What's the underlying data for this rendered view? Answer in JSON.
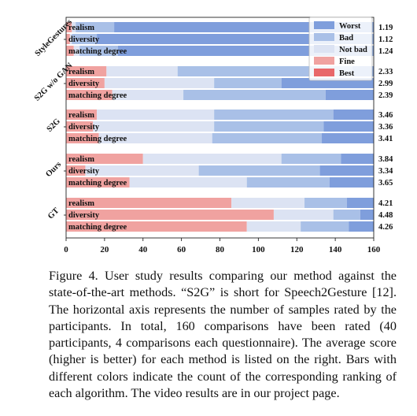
{
  "chart_data": {
    "type": "bar",
    "orientation": "horizontal",
    "stacked": true,
    "xlim": [
      0,
      160
    ],
    "xticks": [
      0,
      20,
      40,
      60,
      80,
      100,
      120,
      140,
      160
    ],
    "legend_position": "top-right",
    "legend_order": [
      "Worst",
      "Bad",
      "Not bad",
      "Fine",
      "Best"
    ],
    "rankings": [
      "Best",
      "Fine",
      "Not bad",
      "Bad",
      "Worst"
    ],
    "colors": {
      "Best": "#e8676a",
      "Fine": "#f0a2a0",
      "Not bad": "#dce3f3",
      "Bad": "#a9c0e7",
      "Worst": "#7f9edc"
    },
    "groups": [
      {
        "name": "StyleGestures",
        "bars": [
          {
            "label": "realism",
            "score": "1.19",
            "values": [
              0,
              3,
              2,
              20,
              135
            ]
          },
          {
            "label": "diversity",
            "score": "1.12",
            "values": [
              0,
              2,
              1,
              13,
              144
            ]
          },
          {
            "label": "matching degree",
            "score": "1.24",
            "values": [
              0,
              4,
              3,
              20,
              133
            ]
          }
        ]
      },
      {
        "name": "S2G w/o GAN",
        "bars": [
          {
            "label": "realism",
            "score": "2.33",
            "values": [
              0,
              21,
              37,
              91,
              11
            ]
          },
          {
            "label": "diversity",
            "score": "2.99",
            "values": [
              0,
              20,
              57,
              35,
              48
            ]
          },
          {
            "label": "matching degree",
            "score": "2.39",
            "values": [
              0,
              24,
              37,
              74,
              25
            ]
          }
        ]
      },
      {
        "name": "S2G",
        "bars": [
          {
            "label": "realism",
            "score": "3.46",
            "values": [
              0,
              16,
              61,
              62,
              21
            ]
          },
          {
            "label": "diversity",
            "score": "3.36",
            "values": [
              0,
              14,
              63,
              57,
              26
            ]
          },
          {
            "label": "matching degree",
            "score": "3.41",
            "values": [
              0,
              17,
              59,
              57,
              27
            ]
          }
        ]
      },
      {
        "name": "Ours",
        "bars": [
          {
            "label": "realism",
            "score": "3.84",
            "values": [
              0,
              40,
              72,
              31,
              17
            ]
          },
          {
            "label": "diversity",
            "score": "3.34",
            "values": [
              0,
              10,
              59,
              63,
              28
            ]
          },
          {
            "label": "matching degree",
            "score": "3.65",
            "values": [
              0,
              33,
              61,
              43,
              23
            ]
          }
        ]
      },
      {
        "name": "GT",
        "bars": [
          {
            "label": "realism",
            "score": "4.21",
            "values": [
              0,
              86,
              38,
              22,
              14
            ]
          },
          {
            "label": "diversity",
            "score": "4.48",
            "values": [
              0,
              108,
              31,
              14,
              7
            ]
          },
          {
            "label": "matching degree",
            "score": "4.26",
            "values": [
              0,
              94,
              28,
              25,
              13
            ]
          }
        ]
      }
    ]
  },
  "caption": {
    "text": "Figure 4.   User study results comparing our method against the state-of-the-art methods. “S2G” is short for Speech2Gesture [12]. The horizontal axis represents the number of samples rated by the participants. In total, 160 comparisons have been rated (40 participants, 4 comparisons each questionnaire). The average score (higher is better) for each method is listed on the right. Bars with different colors indicate the count of the corresponding ranking of each algorithm. The video results are in our project page."
  }
}
